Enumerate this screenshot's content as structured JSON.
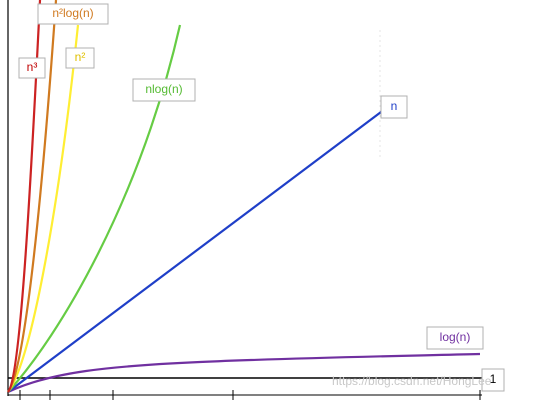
{
  "labels": {
    "n_cubed": "n³",
    "n_squared_log": "n²log(n)",
    "n_squared": "n²",
    "n_log_n": "nlog(n)",
    "n": "n",
    "log_n": "log(n)",
    "constant": "1"
  },
  "watermark": "https://blog.csdn.net/HongLee"
}
